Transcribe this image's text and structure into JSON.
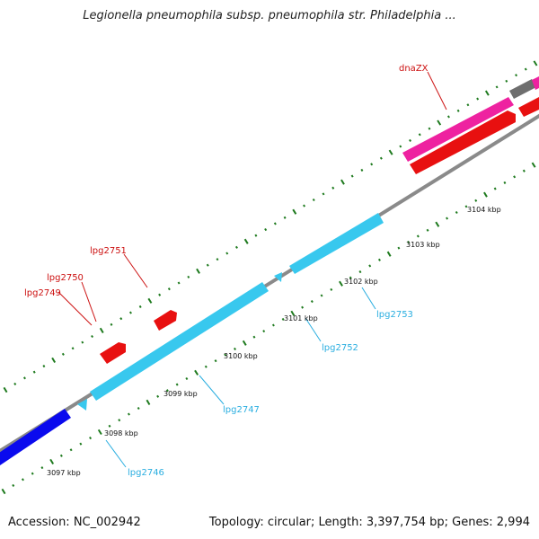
{
  "title": "Legionella pneumophila subsp. pneumophila str. Philadelphia ...",
  "footer": {
    "accession": "Accession: NC_002942",
    "topology": "Topology: circular; Length: 3,397,754 bp; Genes: 2,994"
  },
  "colors": {
    "backbone": "#8a8a8a",
    "forward_gene": "#38c8ee",
    "reverse_gene": "#e81010",
    "rrna": "#ee22a0",
    "other_gene": "#0a0aee",
    "gray_feature": "#6e6e6e",
    "tick": "#1e7a1e",
    "label_forward": "#2aaee0",
    "label_reverse": "#cc1010"
  },
  "ticks": [
    {
      "label": "3097 kbp"
    },
    {
      "label": "3098 kbp"
    },
    {
      "label": "3099 kbp"
    },
    {
      "label": "3100 kbp"
    },
    {
      "label": "3101 kbp"
    },
    {
      "label": "3102 kbp"
    },
    {
      "label": "3103 kbp"
    },
    {
      "label": "3104 kbp"
    }
  ],
  "gene_labels": [
    {
      "name": "dnaZX",
      "strand": "reverse"
    },
    {
      "name": "lpg2751",
      "strand": "reverse"
    },
    {
      "name": "lpg2750",
      "strand": "reverse"
    },
    {
      "name": "lpg2749",
      "strand": "reverse"
    },
    {
      "name": "lpg2753",
      "strand": "forward"
    },
    {
      "name": "lpg2752",
      "strand": "forward"
    },
    {
      "name": "lpg2747",
      "strand": "forward"
    },
    {
      "name": "lpg2746",
      "strand": "forward"
    }
  ]
}
